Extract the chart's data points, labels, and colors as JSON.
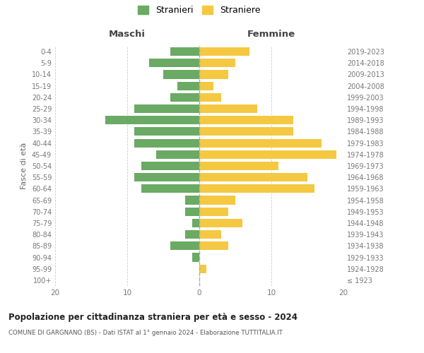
{
  "age_groups": [
    "100+",
    "95-99",
    "90-94",
    "85-89",
    "80-84",
    "75-79",
    "70-74",
    "65-69",
    "60-64",
    "55-59",
    "50-54",
    "45-49",
    "40-44",
    "35-39",
    "30-34",
    "25-29",
    "20-24",
    "15-19",
    "10-14",
    "5-9",
    "0-4"
  ],
  "birth_years": [
    "≤ 1923",
    "1924-1928",
    "1929-1933",
    "1934-1938",
    "1939-1943",
    "1944-1948",
    "1949-1953",
    "1954-1958",
    "1959-1963",
    "1964-1968",
    "1969-1973",
    "1974-1978",
    "1979-1983",
    "1984-1988",
    "1989-1993",
    "1994-1998",
    "1999-2003",
    "2004-2008",
    "2009-2013",
    "2014-2018",
    "2019-2023"
  ],
  "maschi": [
    0,
    0,
    1,
    4,
    2,
    1,
    2,
    2,
    8,
    9,
    8,
    6,
    9,
    9,
    13,
    9,
    4,
    3,
    5,
    7,
    4
  ],
  "femmine": [
    0,
    1,
    0,
    4,
    3,
    6,
    4,
    5,
    16,
    15,
    11,
    19,
    17,
    13,
    13,
    8,
    3,
    2,
    4,
    5,
    7
  ],
  "maschi_color": "#6aaa64",
  "femmine_color": "#f5c842",
  "background_color": "#ffffff",
  "grid_color": "#cccccc",
  "title": "Popolazione per cittadinanza straniera per età e sesso - 2024",
  "subtitle": "COMUNE DI GARGNANO (BS) - Dati ISTAT al 1° gennaio 2024 - Elaborazione TUTTITALIA.IT",
  "xlabel_left": "Maschi",
  "xlabel_right": "Femmine",
  "ylabel_left": "Fasce di età",
  "legend_stranieri": "Stranieri",
  "legend_straniere": "Straniere",
  "xlim": 20
}
